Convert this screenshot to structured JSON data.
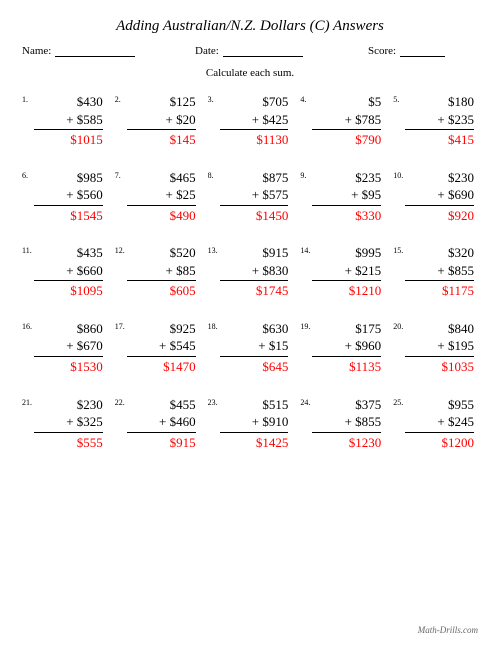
{
  "title": "Adding Australian/N.Z. Dollars (C) Answers",
  "header": {
    "name_label": "Name:",
    "date_label": "Date:",
    "score_label": "Score:"
  },
  "instruction": "Calculate each sum.",
  "footer": "Math-Drills.com",
  "colors": {
    "answer": "#ff0000",
    "text": "#000000",
    "background": "#ffffff"
  },
  "problems": [
    {
      "n": "1.",
      "a": "$430",
      "b": "+ $585",
      "ans": "$1015"
    },
    {
      "n": "2.",
      "a": "$125",
      "b": "+ $20",
      "ans": "$145"
    },
    {
      "n": "3.",
      "a": "$705",
      "b": "+ $425",
      "ans": "$1130"
    },
    {
      "n": "4.",
      "a": "$5",
      "b": "+ $785",
      "ans": "$790"
    },
    {
      "n": "5.",
      "a": "$180",
      "b": "+ $235",
      "ans": "$415"
    },
    {
      "n": "6.",
      "a": "$985",
      "b": "+ $560",
      "ans": "$1545"
    },
    {
      "n": "7.",
      "a": "$465",
      "b": "+ $25",
      "ans": "$490"
    },
    {
      "n": "8.",
      "a": "$875",
      "b": "+ $575",
      "ans": "$1450"
    },
    {
      "n": "9.",
      "a": "$235",
      "b": "+ $95",
      "ans": "$330"
    },
    {
      "n": "10.",
      "a": "$230",
      "b": "+ $690",
      "ans": "$920"
    },
    {
      "n": "11.",
      "a": "$435",
      "b": "+ $660",
      "ans": "$1095"
    },
    {
      "n": "12.",
      "a": "$520",
      "b": "+ $85",
      "ans": "$605"
    },
    {
      "n": "13.",
      "a": "$915",
      "b": "+ $830",
      "ans": "$1745"
    },
    {
      "n": "14.",
      "a": "$995",
      "b": "+ $215",
      "ans": "$1210"
    },
    {
      "n": "15.",
      "a": "$320",
      "b": "+ $855",
      "ans": "$1175"
    },
    {
      "n": "16.",
      "a": "$860",
      "b": "+ $670",
      "ans": "$1530"
    },
    {
      "n": "17.",
      "a": "$925",
      "b": "+ $545",
      "ans": "$1470"
    },
    {
      "n": "18.",
      "a": "$630",
      "b": "+ $15",
      "ans": "$645"
    },
    {
      "n": "19.",
      "a": "$175",
      "b": "+ $960",
      "ans": "$1135"
    },
    {
      "n": "20.",
      "a": "$840",
      "b": "+ $195",
      "ans": "$1035"
    },
    {
      "n": "21.",
      "a": "$230",
      "b": "+ $325",
      "ans": "$555"
    },
    {
      "n": "22.",
      "a": "$455",
      "b": "+ $460",
      "ans": "$915"
    },
    {
      "n": "23.",
      "a": "$515",
      "b": "+ $910",
      "ans": "$1425"
    },
    {
      "n": "24.",
      "a": "$375",
      "b": "+ $855",
      "ans": "$1230"
    },
    {
      "n": "25.",
      "a": "$955",
      "b": "+ $245",
      "ans": "$1200"
    }
  ]
}
